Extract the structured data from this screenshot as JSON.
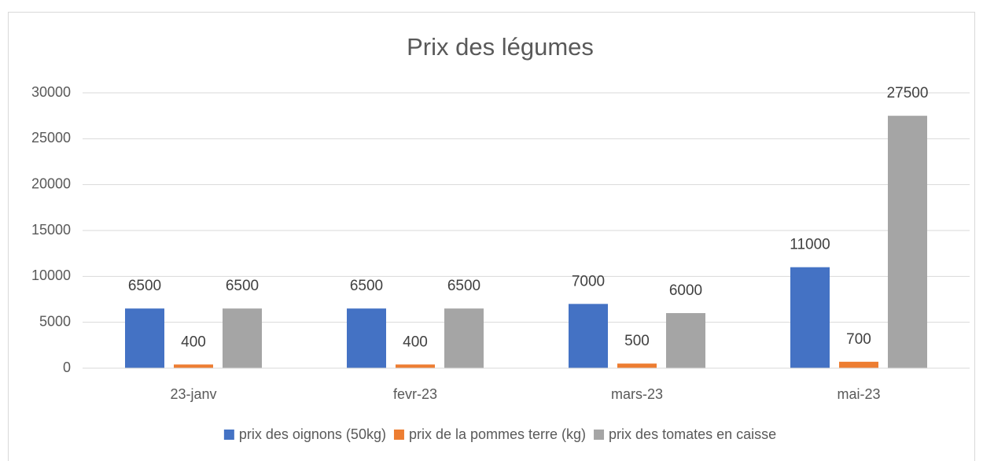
{
  "chart_data": {
    "type": "bar",
    "title": "Prix des légumes",
    "categories": [
      "23-janv",
      "fevr-23",
      "mars-23",
      "mai-23"
    ],
    "series": [
      {
        "name": "prix des oignons (50kg)",
        "color": "#4472c4",
        "values": [
          6500,
          6500,
          7000,
          11000
        ]
      },
      {
        "name": "prix de la pommes terre (kg)",
        "color": "#ed7d31",
        "values": [
          400,
          400,
          500,
          700
        ]
      },
      {
        "name": "prix des tomates en caisse",
        "color": "#a5a5a5",
        "values": [
          6500,
          6500,
          6000,
          27500
        ]
      }
    ],
    "ylim": [
      0,
      30000
    ],
    "yticks": [
      0,
      5000,
      10000,
      15000,
      20000,
      25000,
      30000
    ],
    "grid": true,
    "legend": "bottom"
  }
}
